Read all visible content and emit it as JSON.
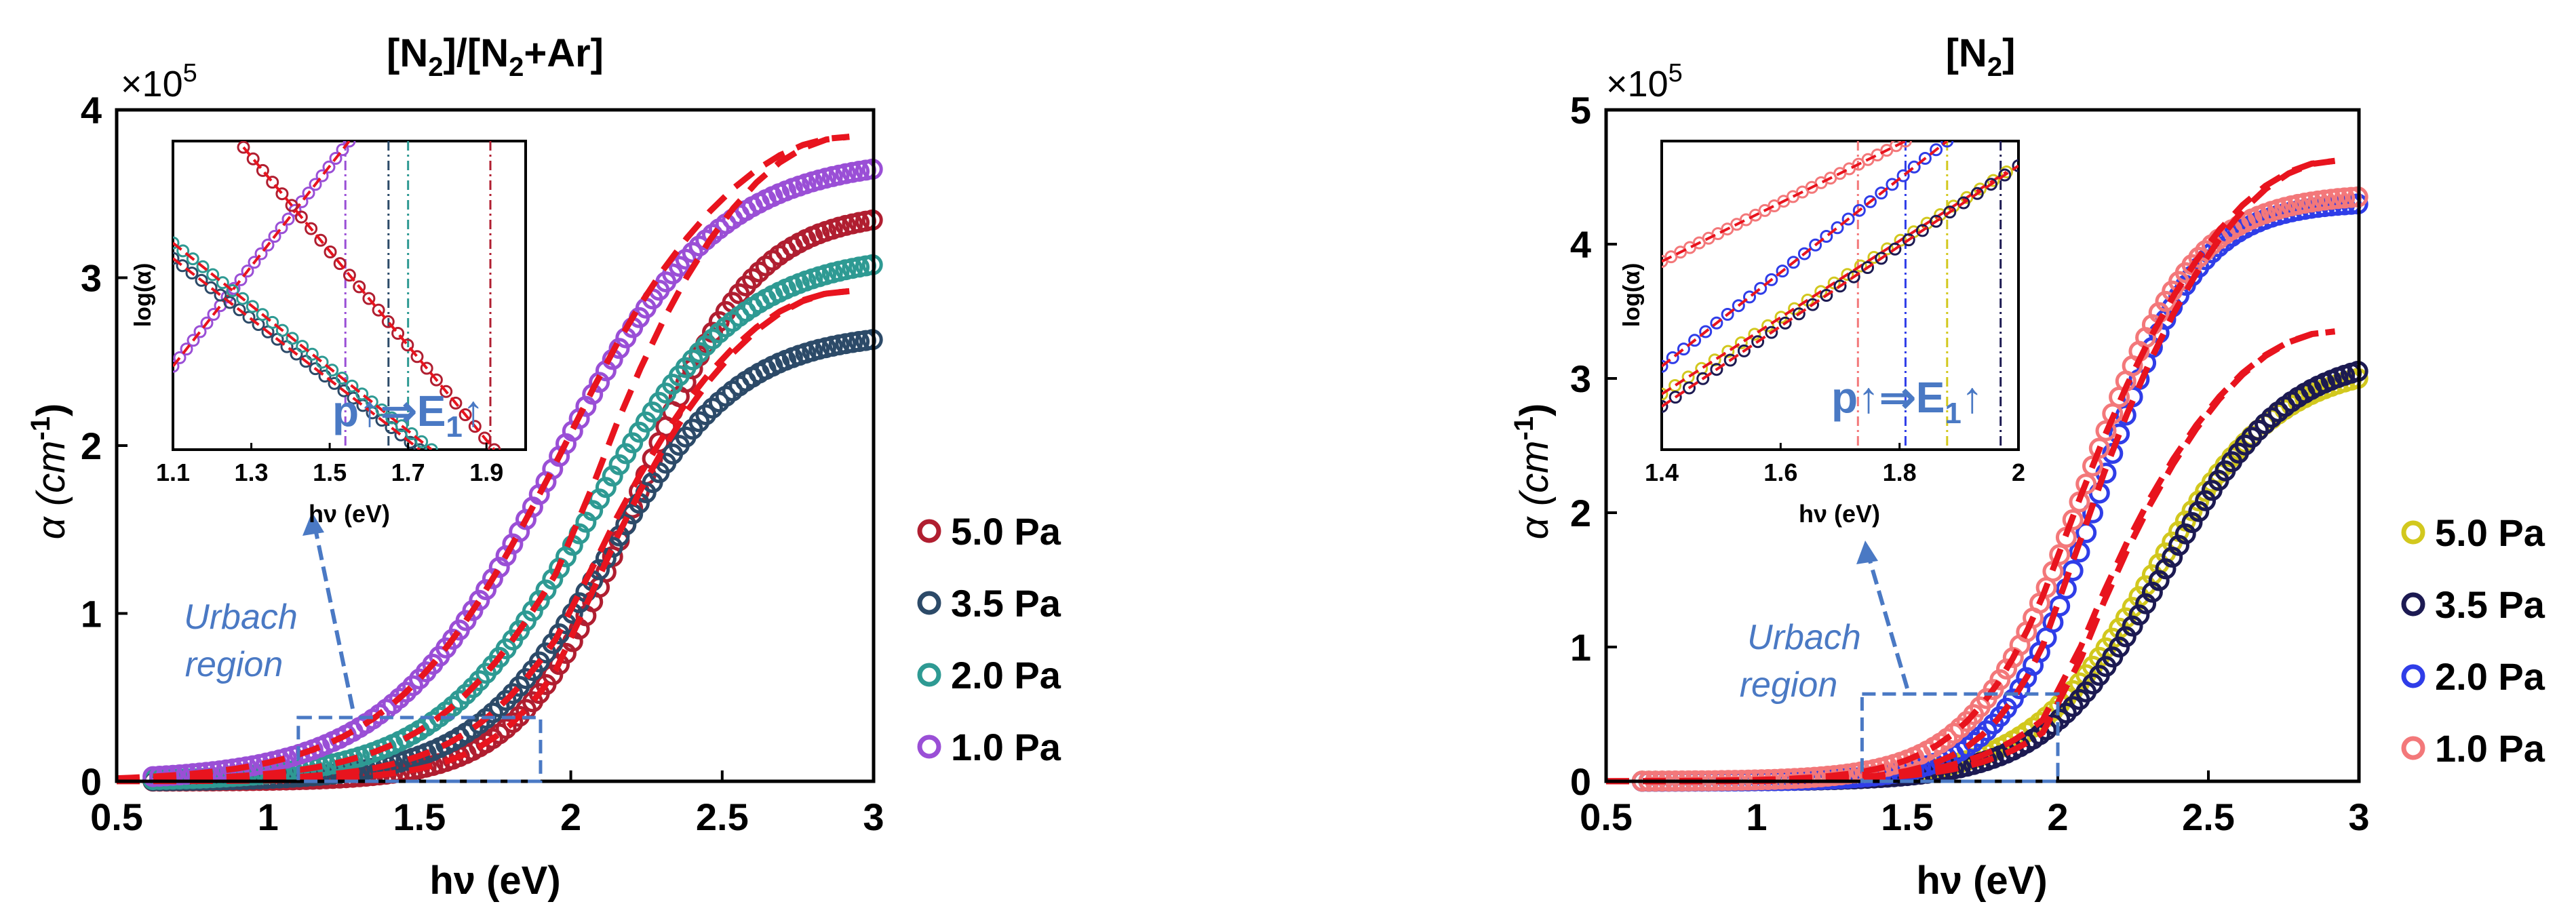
{
  "figure": {
    "colors": {
      "fit": "#e8141e",
      "axis": "#000000",
      "annotation": "#4a79c4",
      "p5_left": "#b01e30",
      "p35_left": "#2c4a68",
      "p2_left": "#2e9a93",
      "p1_left": "#9a4fd6",
      "p5_right": "#d2c81e",
      "p35_right": "#1c1a52",
      "p2_right": "#2f3de8",
      "p1_right": "#f3787a"
    }
  },
  "chart_data": [
    {
      "id": "left",
      "type": "scatter",
      "title": "[N2]/[N2+Ar]",
      "title_parts": [
        "[N",
        "2",
        "]/[N",
        "2",
        "+Ar]"
      ],
      "xlabel": "hν (eV)",
      "ylabel": "α (cm-1)",
      "ylabel_base": "α (cm",
      "ylabel_sup": "-1",
      "ylabel_end": ")",
      "y_multiplier": "×10",
      "y_multiplier_exp": "5",
      "xlim": [
        0.5,
        3
      ],
      "ylim": [
        0,
        4
      ],
      "xticks": [
        0.5,
        1,
        1.5,
        2,
        2.5,
        3
      ],
      "xtick_labels": [
        "0.5",
        "1",
        "1.5",
        "2",
        "2.5",
        "3"
      ],
      "yticks": [
        0,
        1,
        2,
        3,
        4
      ],
      "ytick_labels": [
        "0",
        "1",
        "2",
        "3",
        "4"
      ],
      "series": [
        {
          "name": "5.0 Pa",
          "color": "#b01e30",
          "sat": 3.4,
          "e0": 2.22,
          "w": 0.19,
          "fit_end": 2.92
        },
        {
          "name": "3.5 Pa",
          "color": "#2c4a68",
          "sat": 2.68,
          "e0": 2.12,
          "w": 0.22,
          "fit_end": 2.92
        },
        {
          "name": "2.0 Pa",
          "color": "#2e9a93",
          "sat": 3.15,
          "e0": 2.06,
          "w": 0.25,
          "fit_end": 3.84
        },
        {
          "name": "1.0 Pa",
          "color": "#9a4fd6",
          "sat": 3.72,
          "e0": 1.94,
          "w": 0.27,
          "fit_end": 3.84
        }
      ],
      "fit_label": "dashed red fits",
      "urbach_label_1": "Urbach",
      "urbach_label_2": "region",
      "urbach_box_x": [
        1.1,
        1.9
      ],
      "urbach_box_y": [
        0,
        0.38
      ],
      "inset": {
        "ylabel": "log(α)",
        "xlabel": "hν (eV)",
        "xlim": [
          1.1,
          2.0
        ],
        "xticks": [
          1.1,
          1.3,
          1.5,
          1.7,
          1.9
        ],
        "xtick_labels": [
          "1.1",
          "1.3",
          "1.5",
          "1.7",
          "1.9"
        ],
        "e1_lines": [
          {
            "x": 1.54,
            "color": "#9a4fd6"
          },
          {
            "x": 1.65,
            "color": "#2c4a68"
          },
          {
            "x": 1.7,
            "color": "#2e9a93"
          },
          {
            "x": 1.91,
            "color": "#b01e30"
          }
        ],
        "curves": [
          {
            "color": "#9a4fd6",
            "start": [
              1.1,
              0.27
            ],
            "end": [
              1.55,
              1.0
            ]
          },
          {
            "color": "#2c4a68",
            "start": [
              1.1,
              0.62
            ],
            "end": [
              1.73,
              0.0
            ]
          },
          {
            "color": "#2e9a93",
            "start": [
              1.1,
              0.67
            ],
            "end": [
              1.76,
              0.0
            ]
          },
          {
            "color": "#b01e30",
            "start": [
              1.28,
              0.98
            ],
            "end": [
              1.92,
              0.0
            ]
          }
        ],
        "annotation_parts": [
          "p↑⇒E",
          "1",
          "↑"
        ]
      }
    },
    {
      "id": "right",
      "type": "scatter",
      "title": "[N2]",
      "title_parts": [
        "[N",
        "2",
        "]"
      ],
      "xlabel": "hν (eV)",
      "ylabel": "α (cm-1)",
      "ylabel_base": "α (cm",
      "ylabel_sup": "-1",
      "ylabel_end": ")",
      "y_multiplier": "×10",
      "y_multiplier_exp": "5",
      "xlim": [
        0.5,
        3
      ],
      "ylim": [
        0,
        5
      ],
      "xticks": [
        0.5,
        1,
        1.5,
        2,
        2.5,
        3
      ],
      "xtick_labels": [
        "0.5",
        "1",
        "1.5",
        "2",
        "2.5",
        "3"
      ],
      "yticks": [
        0,
        1,
        2,
        3,
        4,
        5
      ],
      "ytick_labels": [
        "0",
        "1",
        "2",
        "3",
        "4",
        "5"
      ],
      "series": [
        {
          "name": "5.0 Pa",
          "color": "#d2c81e",
          "sat": 3.12,
          "e0": 2.32,
          "w": 0.21,
          "fit_end": 3.35
        },
        {
          "name": "3.5 Pa",
          "color": "#1c1a52",
          "sat": 3.18,
          "e0": 2.36,
          "w": 0.2,
          "fit_end": 3.35
        },
        {
          "name": "2.0 Pa",
          "color": "#2f3de8",
          "sat": 4.32,
          "e0": 2.14,
          "w": 0.16,
          "fit_end": 4.62
        },
        {
          "name": "1.0 Pa",
          "color": "#f3787a",
          "sat": 4.38,
          "e0": 2.09,
          "w": 0.18,
          "fit_end": 4.62
        }
      ],
      "fit_label": "dashed red fits",
      "urbach_label_1": "Urbach",
      "urbach_label_2": "region",
      "urbach_box_x": [
        1.35,
        2.0
      ],
      "urbach_box_y": [
        0,
        0.65
      ],
      "inset": {
        "ylabel": "log(α)",
        "xlabel": "hν (eV)",
        "xlim": [
          1.4,
          2.0
        ],
        "xticks": [
          1.4,
          1.6,
          1.8,
          2
        ],
        "xtick_labels": [
          "1.4",
          "1.6",
          "1.8",
          "2"
        ],
        "e1_lines": [
          {
            "x": 1.73,
            "color": "#f3787a"
          },
          {
            "x": 1.81,
            "color": "#2f3de8"
          },
          {
            "x": 1.88,
            "color": "#d2c81e"
          },
          {
            "x": 1.97,
            "color": "#1c1a52"
          }
        ],
        "curves": [
          {
            "color": "#f3787a",
            "start": [
              1.4,
              0.61
            ],
            "end": [
              1.81,
              1.0
            ]
          },
          {
            "color": "#2f3de8",
            "start": [
              1.4,
              0.27
            ],
            "end": [
              1.88,
              1.0
            ]
          },
          {
            "color": "#d2c81e",
            "start": [
              1.4,
              0.18
            ],
            "end": [
              1.98,
              0.9
            ]
          },
          {
            "color": "#1c1a52",
            "start": [
              1.4,
              0.14
            ],
            "end": [
              2.0,
              0.92
            ]
          }
        ],
        "annotation_parts": [
          "p↑⇒E",
          "1",
          "↑"
        ]
      }
    }
  ]
}
